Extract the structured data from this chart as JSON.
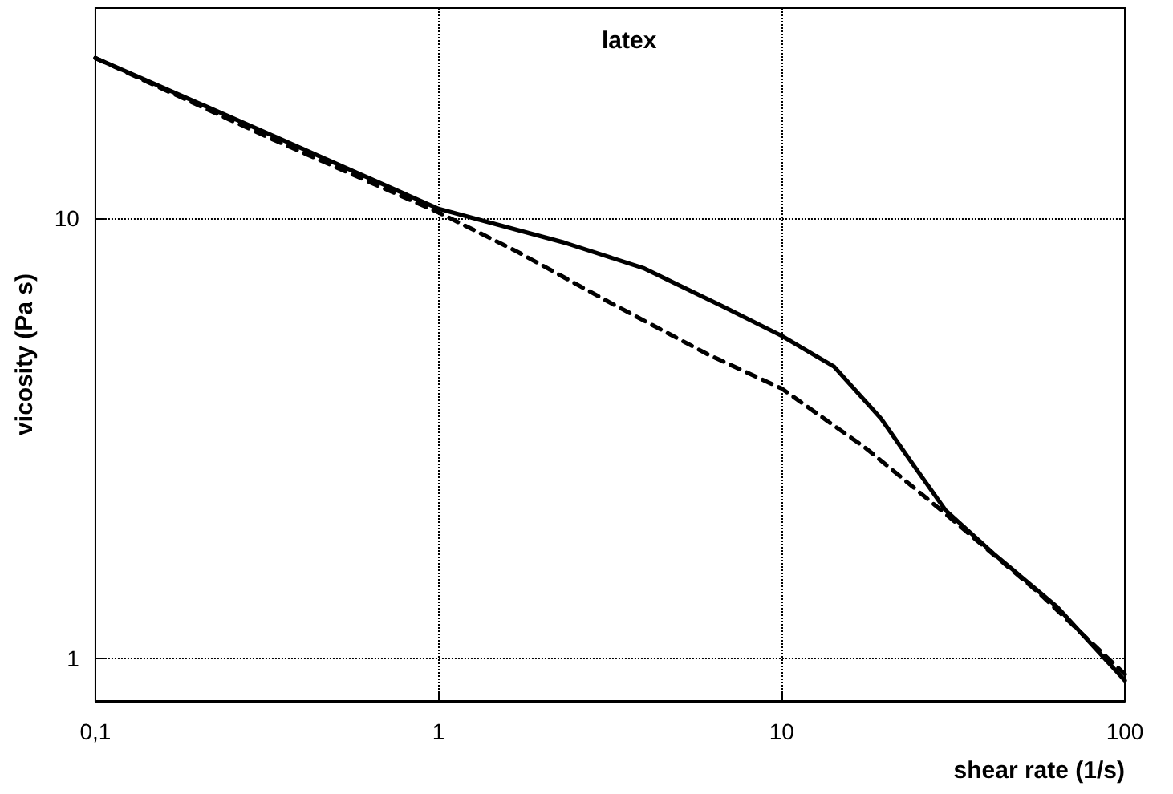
{
  "chart_data": {
    "type": "line",
    "xlabel": "shear rate (1/s)",
    "ylabel": "vicosity (Pa s)",
    "annotations": [
      "latex"
    ],
    "log": "xy",
    "grid": true,
    "marker": "none",
    "xlim": [
      0.1,
      100
    ],
    "xticks": [
      {
        "value": 0.1,
        "label": "0,1"
      },
      1,
      10,
      100
    ],
    "ylim": [
      0.8,
      30
    ],
    "yticks": [
      1,
      10
    ],
    "series": [
      {
        "color": "#000000",
        "line_style": "solid",
        "x": [
          0.1,
          0.316,
          1,
          2.32,
          3.95,
          6.74,
          10,
          14.2,
          19.5,
          24.2,
          30,
          41.4,
          63.4,
          100
        ],
        "values": [
          23.1,
          15.6,
          10.5,
          8.8,
          7.7,
          6.3,
          5.4,
          4.6,
          3.5,
          2.75,
          2.17,
          1.73,
          1.31,
          0.89
        ]
      },
      {
        "color": "#000000",
        "line_style": "dashed",
        "x": [
          0.1,
          0.316,
          1,
          1.69,
          3.19,
          6.1,
          10,
          17.6,
          30,
          56.6,
          100
        ],
        "values": [
          23.1,
          15.3,
          10.3,
          8.4,
          6.4,
          4.9,
          4.1,
          3.0,
          2.13,
          1.4,
          0.92
        ]
      }
    ]
  }
}
